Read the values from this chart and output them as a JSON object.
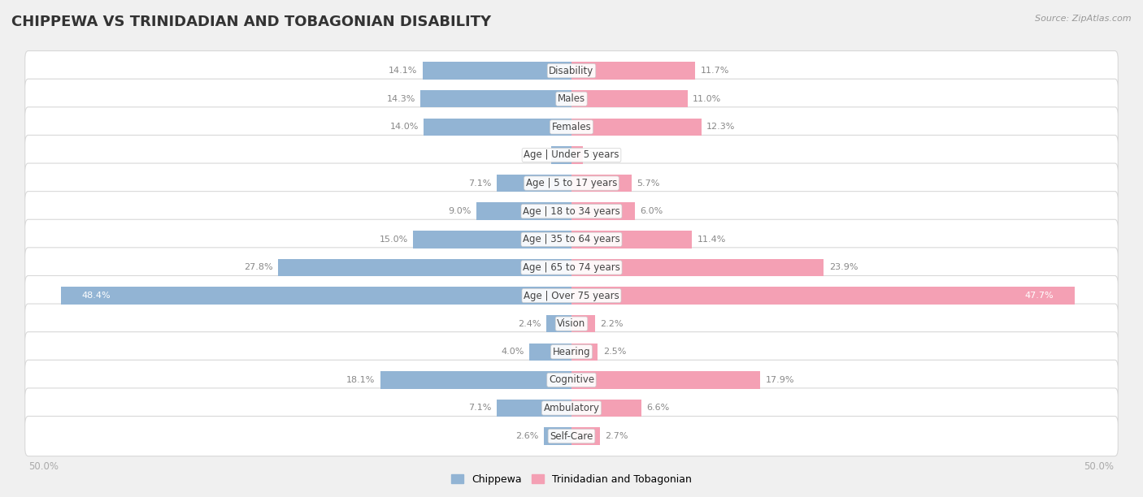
{
  "title": "CHIPPEWA VS TRINIDADIAN AND TOBAGONIAN DISABILITY",
  "source": "Source: ZipAtlas.com",
  "categories": [
    "Disability",
    "Males",
    "Females",
    "Age | Under 5 years",
    "Age | 5 to 17 years",
    "Age | 18 to 34 years",
    "Age | 35 to 64 years",
    "Age | 65 to 74 years",
    "Age | Over 75 years",
    "Vision",
    "Hearing",
    "Cognitive",
    "Ambulatory",
    "Self-Care"
  ],
  "chippewa": [
    14.1,
    14.3,
    14.0,
    1.9,
    7.1,
    9.0,
    15.0,
    27.8,
    48.4,
    2.4,
    4.0,
    18.1,
    7.1,
    2.6
  ],
  "trinidadian": [
    11.7,
    11.0,
    12.3,
    1.1,
    5.7,
    6.0,
    11.4,
    23.9,
    47.7,
    2.2,
    2.5,
    17.9,
    6.6,
    2.7
  ],
  "chippewa_color": "#92b4d4",
  "trinidadian_color": "#f4a0b4",
  "axis_max": 50.0,
  "background_color": "#f0f0f0",
  "row_bg_color": "#ffffff",
  "row_border_color": "#d8d8d8",
  "legend_chippewa": "Chippewa",
  "legend_trinidadian": "Trinidadian and Tobagonian",
  "title_fontsize": 13,
  "label_fontsize": 8.5,
  "value_fontsize": 8,
  "bar_height": 0.62
}
